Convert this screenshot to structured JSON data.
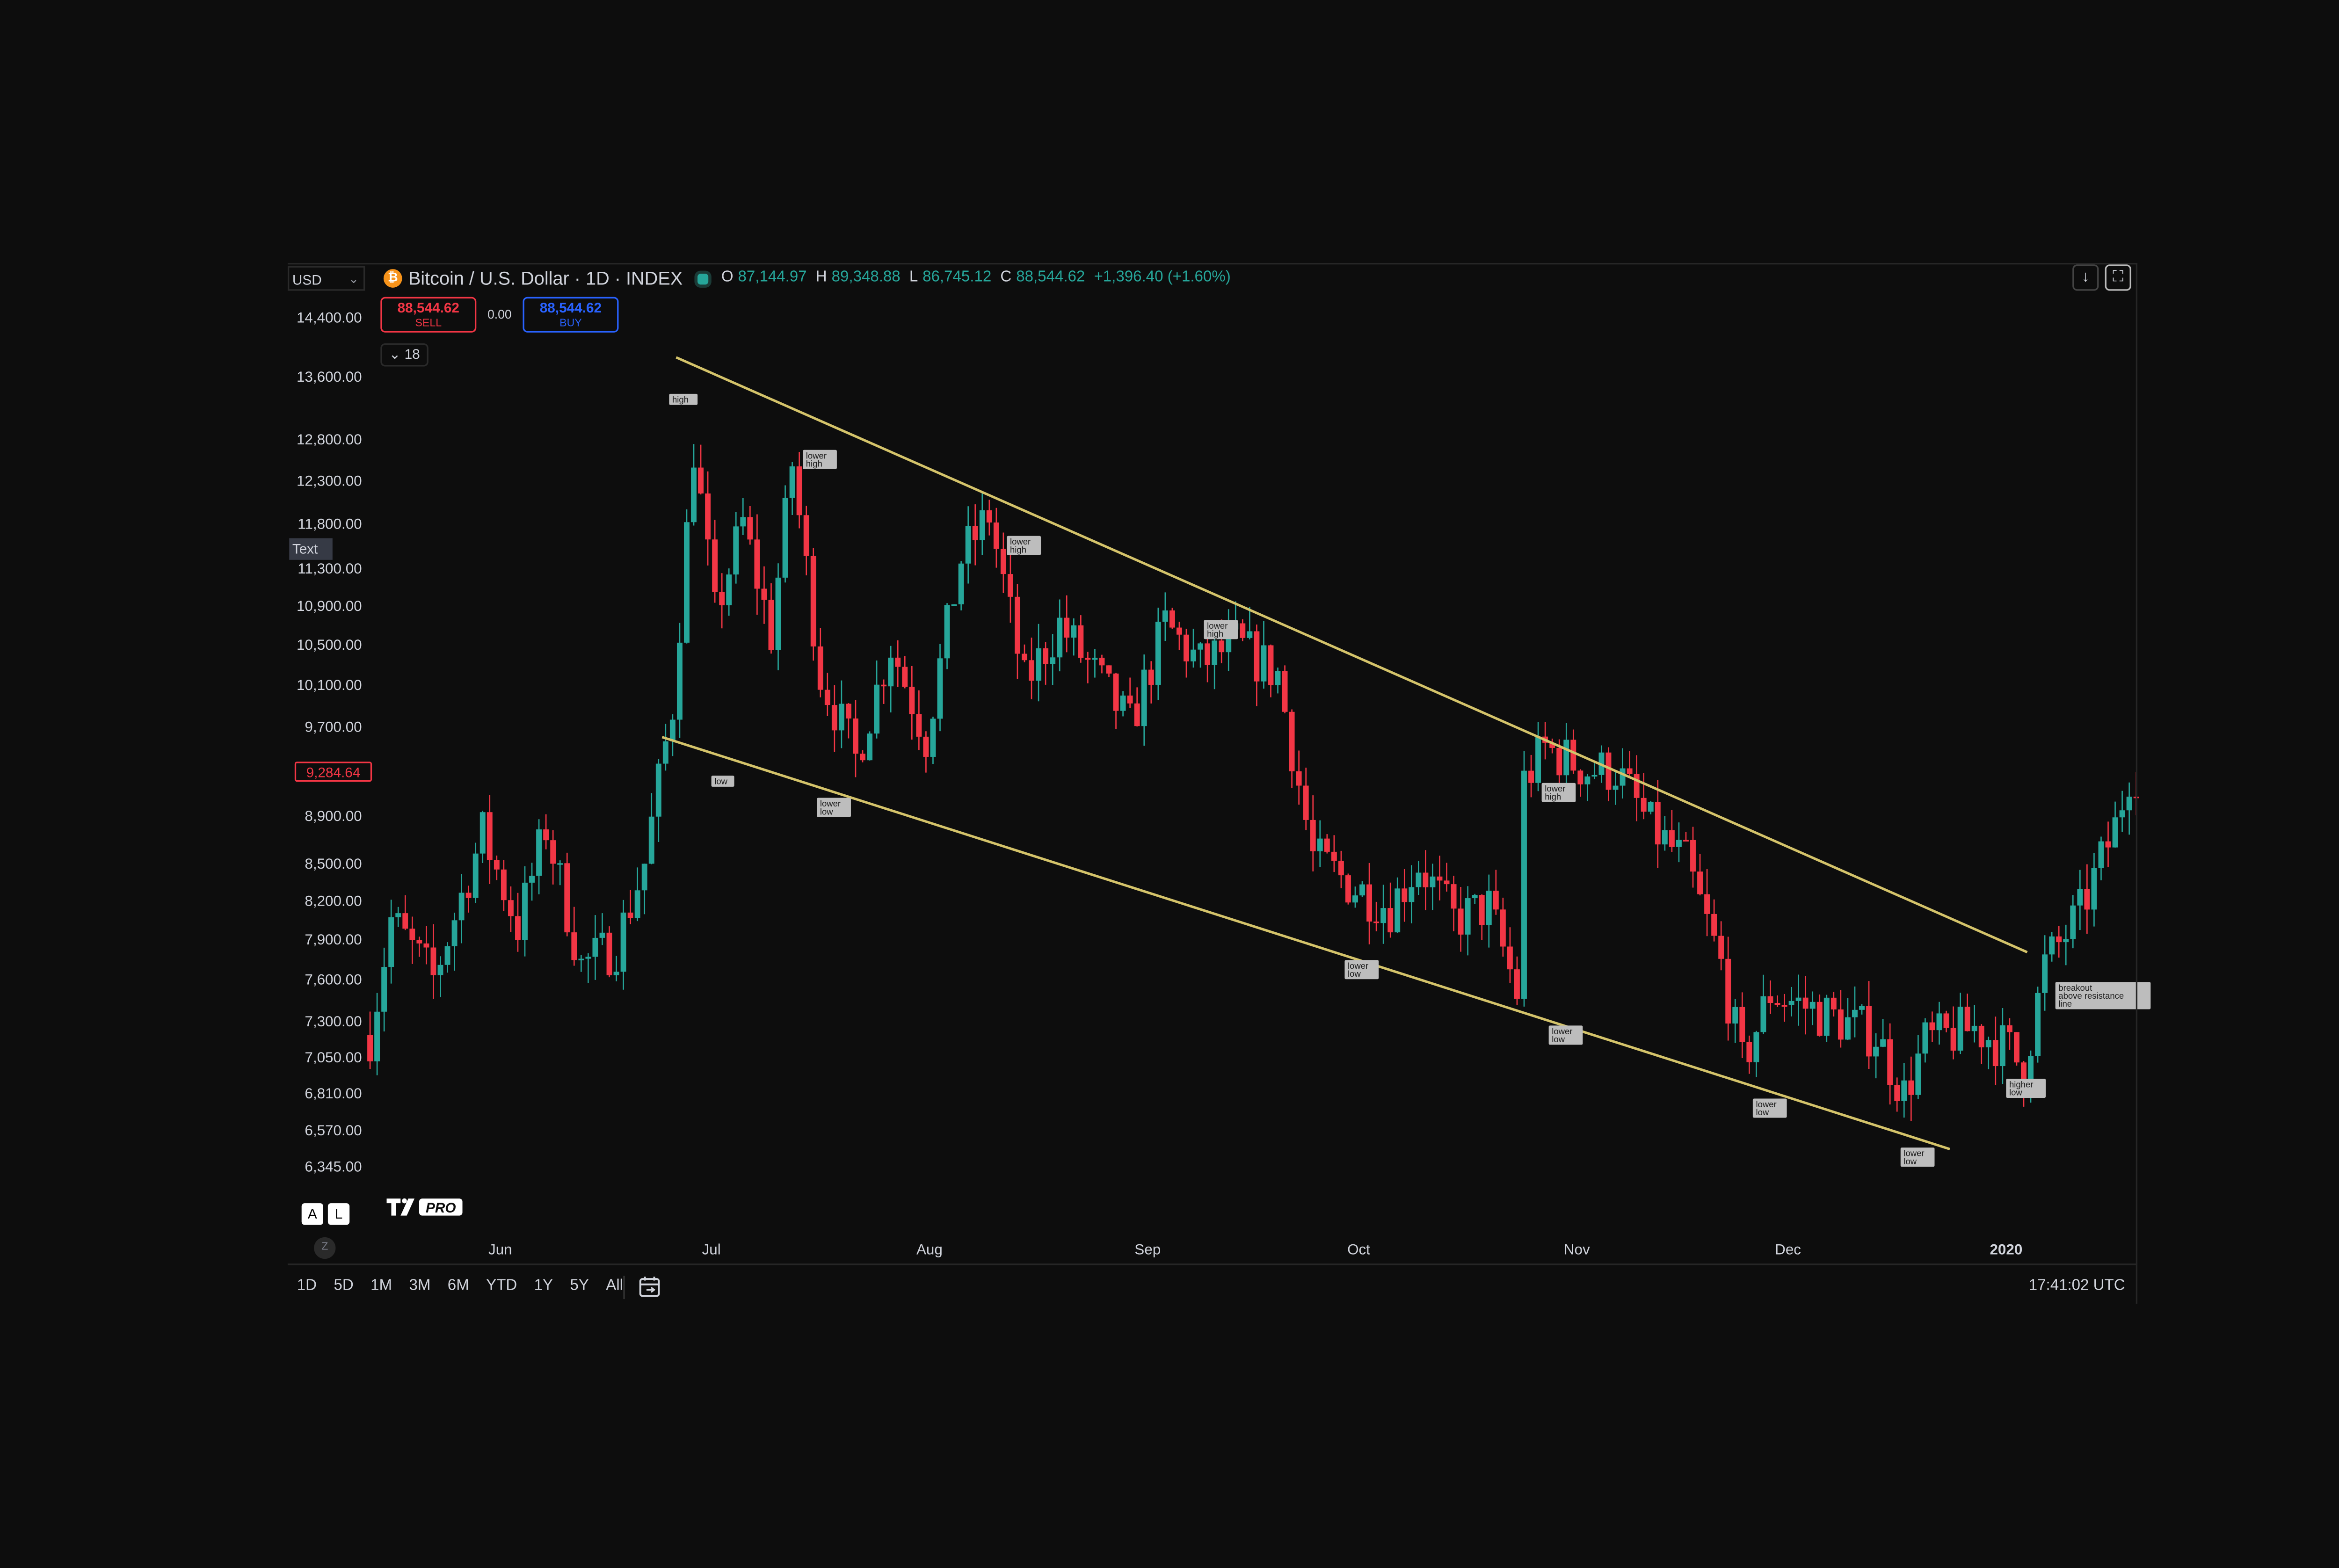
{
  "header": {
    "currency": "USD",
    "symbol_title": "Bitcoin / U.S. Dollar · 1D · INDEX",
    "btc_icon": "₿",
    "ohlc": {
      "o_label": "O",
      "o": "87,144.97",
      "h_label": "H",
      "h": "89,348.88",
      "l_label": "L",
      "l": "86,745.12",
      "c_label": "C",
      "c": "88,544.62",
      "change": "+1,396.40 (+1.60%)"
    }
  },
  "trade": {
    "sell_price": "88,544.62",
    "sell_label": "SELL",
    "spread": "0.00",
    "buy_price": "88,544.62",
    "buy_label": "BUY",
    "indicator_count": "18"
  },
  "toolbar": {
    "download_icon": "↓",
    "fullscreen_icon": "⛶",
    "text_tag": "Text",
    "auto_label": "A",
    "log_label": "L",
    "zoom_label": "Z",
    "logo_text": "PRO",
    "ranges": [
      "1D",
      "5D",
      "1M",
      "3M",
      "6M",
      "YTD",
      "1Y",
      "5Y",
      "All"
    ],
    "time": "17:41:02 UTC"
  },
  "colors": {
    "up": "#26a69a",
    "down": "#f23645",
    "trendline": "#d4c36a",
    "background": "#0d0d0d"
  },
  "chart_data": {
    "type": "candlestick",
    "log_scale": true,
    "ylim": [
      6345,
      14400
    ],
    "price_tick_labels": [
      "14,400.00",
      "13,600.00",
      "12,800.00",
      "12,300.00",
      "11,800.00",
      "11,300.00",
      "10,900.00",
      "10,500.00",
      "10,100.00",
      "9,700.00",
      "8,900.00",
      "8,500.00",
      "8,200.00",
      "7,900.00",
      "7,600.00",
      "7,300.00",
      "7,050.00",
      "6,810.00",
      "6,570.00",
      "6,345.00"
    ],
    "price_ticks": [
      14400,
      13600,
      12800,
      12300,
      11800,
      11300,
      10900,
      10500,
      10100,
      9700,
      8900,
      8500,
      8200,
      7900,
      7600,
      7300,
      7050,
      6810,
      6570,
      6345
    ],
    "current_price_label": "9,284.64",
    "current_price": 9284.64,
    "x_range": [
      "2019-05-13",
      "2020-01-19"
    ],
    "x_tick_labels": [
      {
        "date": "2019-06-01",
        "label": "Jun"
      },
      {
        "date": "2019-07-01",
        "label": "Jul"
      },
      {
        "date": "2019-08-01",
        "label": "Aug"
      },
      {
        "date": "2019-09-01",
        "label": "Sep"
      },
      {
        "date": "2019-10-01",
        "label": "Oct"
      },
      {
        "date": "2019-11-01",
        "label": "Nov"
      },
      {
        "date": "2019-12-01",
        "label": "Dec"
      },
      {
        "date": "2020-01-01",
        "label": "2020",
        "bold": true
      }
    ],
    "price_path": [
      [
        "2019-05-14",
        7200
      ],
      [
        "2019-05-17",
        8050
      ],
      [
        "2019-05-23",
        7600
      ],
      [
        "2019-05-30",
        8750
      ],
      [
        "2019-06-04",
        8000
      ],
      [
        "2019-06-08",
        8800
      ],
      [
        "2019-06-13",
        7700
      ],
      [
        "2019-06-18",
        7850
      ],
      [
        "2019-06-22",
        8500
      ],
      [
        "2019-06-26",
        9900
      ],
      [
        "2019-06-29",
        12700
      ],
      [
        "2019-07-02",
        10800
      ],
      [
        "2019-07-06",
        11800
      ],
      [
        "2019-07-10",
        10600
      ],
      [
        "2019-07-13",
        12500
      ],
      [
        "2019-07-17",
        10200
      ],
      [
        "2019-07-22",
        9400
      ],
      [
        "2019-07-27",
        10500
      ],
      [
        "2019-08-01",
        9600
      ],
      [
        "2019-08-06",
        11400
      ],
      [
        "2019-08-10",
        11900
      ],
      [
        "2019-08-15",
        10100
      ],
      [
        "2019-08-20",
        10700
      ],
      [
        "2019-08-25",
        10200
      ],
      [
        "2019-08-30",
        9700
      ],
      [
        "2019-09-04",
        10700
      ],
      [
        "2019-09-09",
        10300
      ],
      [
        "2019-09-14",
        10500
      ],
      [
        "2019-09-20",
        10200
      ],
      [
        "2019-09-25",
        8550
      ],
      [
        "2019-10-01",
        8300
      ],
      [
        "2019-10-06",
        8150
      ],
      [
        "2019-10-10",
        8500
      ],
      [
        "2019-10-15",
        8050
      ],
      [
        "2019-10-20",
        8150
      ],
      [
        "2019-10-24",
        7500
      ],
      [
        "2019-10-25",
        9200
      ],
      [
        "2019-10-28",
        9500
      ],
      [
        "2019-11-03",
        9300
      ],
      [
        "2019-11-07",
        9300
      ],
      [
        "2019-11-12",
        8800
      ],
      [
        "2019-11-17",
        8500
      ],
      [
        "2019-11-22",
        7700
      ],
      [
        "2019-11-25",
        7000
      ],
      [
        "2019-11-29",
        7500
      ],
      [
        "2019-12-04",
        7400
      ],
      [
        "2019-12-09",
        7300
      ],
      [
        "2019-12-14",
        7200
      ],
      [
        "2019-12-18",
        6800
      ],
      [
        "2019-12-21",
        7150
      ],
      [
        "2019-12-28",
        7250
      ],
      [
        "2020-01-02",
        7100
      ],
      [
        "2020-01-04",
        6950
      ],
      [
        "2020-01-07",
        7700
      ],
      [
        "2020-01-12",
        8100
      ],
      [
        "2020-01-17",
        8800
      ],
      [
        "2020-01-19",
        9280
      ]
    ],
    "trendlines": [
      {
        "name": "resistance",
        "from": [
          "2019-06-26",
          13850
        ],
        "to": [
          "2020-01-04",
          7800
        ]
      },
      {
        "name": "support",
        "from": [
          "2019-06-24",
          9600
        ],
        "to": [
          "2019-12-24",
          6450
        ]
      }
    ],
    "annotations": [
      {
        "text": "high",
        "date": "2019-06-25",
        "price": 13300
      },
      {
        "text": "low",
        "date": "2019-07-01",
        "price": 9200
      },
      {
        "text": "lower high",
        "date": "2019-07-14",
        "price": 12550
      },
      {
        "text": "lower low",
        "date": "2019-07-16",
        "price": 8970
      },
      {
        "text": "lower high",
        "date": "2019-08-12",
        "price": 11550
      },
      {
        "text": "lower high",
        "date": "2019-09-09",
        "price": 10650
      },
      {
        "text": "lower low",
        "date": "2019-09-29",
        "price": 7670
      },
      {
        "text": "lower high",
        "date": "2019-10-27",
        "price": 9100
      },
      {
        "text": "lower low",
        "date": "2019-10-28",
        "price": 7200
      },
      {
        "text": "lower low",
        "date": "2019-11-26",
        "price": 6710
      },
      {
        "text": "lower low",
        "date": "2019-12-17",
        "price": 6400
      },
      {
        "text": "higher low",
        "date": "2020-01-01",
        "price": 6840
      },
      {
        "text": "breakout above resistance line",
        "date": "2020-01-08",
        "price": 7480
      }
    ]
  }
}
